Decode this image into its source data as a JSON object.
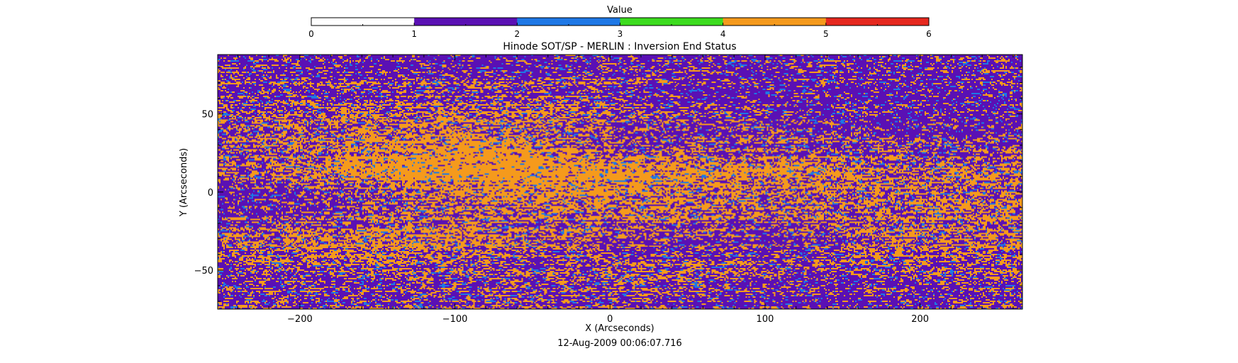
{
  "chart_data": {
    "type": "heatmap",
    "title": "Hinode SOT/SP - MERLIN : Inversion End Status",
    "xlabel": "X (Arcseconds)",
    "ylabel": "Y (Arcseconds)",
    "timestamp": "12-Aug-2009 00:06:07.716",
    "xlim": [
      -253,
      266
    ],
    "ylim": [
      -75,
      88
    ],
    "x_ticks": [
      -200,
      -100,
      0,
      100,
      200
    ],
    "x_tick_labels": [
      "−200",
      "−100",
      "0",
      "100",
      "200"
    ],
    "y_ticks": [
      -50,
      0,
      50
    ],
    "y_tick_labels": [
      "−50",
      "0",
      "50"
    ],
    "grid": false,
    "colorbar": {
      "label": "Value",
      "range": [
        0,
        6
      ],
      "ticks": [
        0,
        1,
        2,
        3,
        4,
        5,
        6
      ],
      "tick_labels": [
        "0",
        "1",
        "2",
        "3",
        "4",
        "5",
        "6"
      ],
      "colors": [
        "#ffffff",
        "#5a10b4",
        "#1e78e6",
        "#3cdc1e",
        "#f59a1c",
        "#e6281e"
      ]
    },
    "value_shares": {
      "1": 0.52,
      "2": 0.08,
      "4": 0.4
    }
  }
}
